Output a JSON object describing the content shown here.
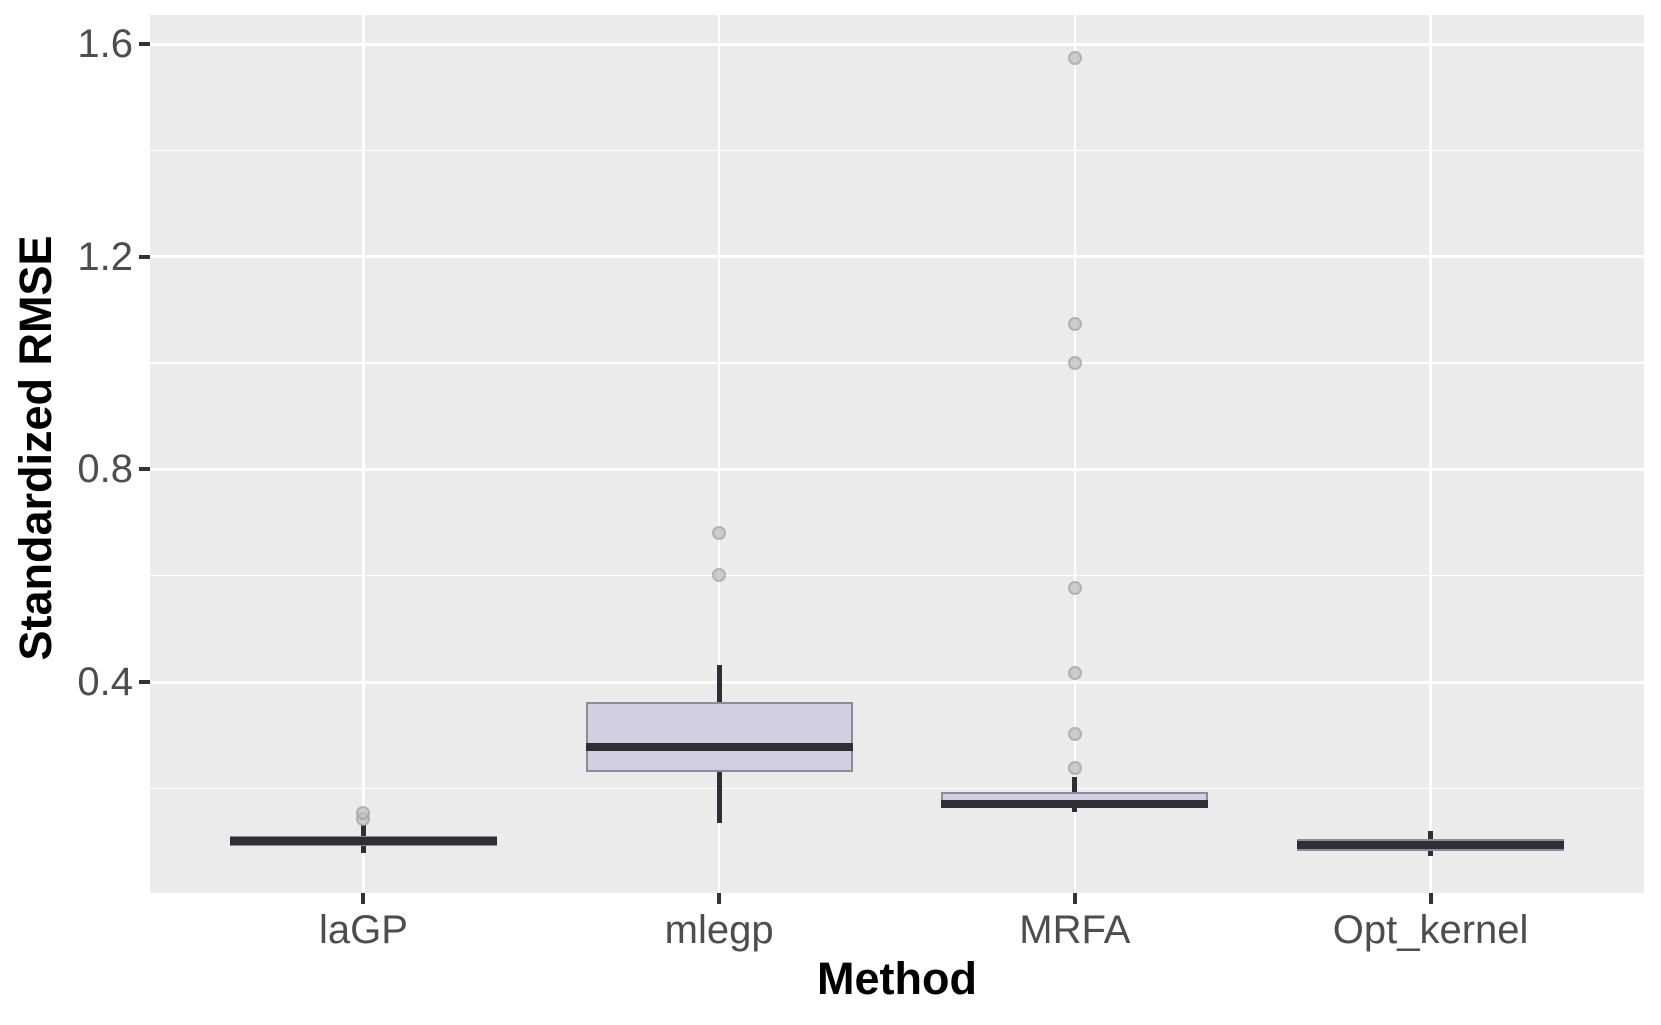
{
  "chart_data": {
    "type": "boxplot",
    "title": "",
    "xlabel": "Method",
    "ylabel": "Standardized RMSE",
    "categories": [
      "laGP",
      "mlegp",
      "MRFA",
      "Opt_kernel"
    ],
    "y_axis": {
      "ticks": [
        0.4,
        0.8,
        1.2,
        1.6
      ],
      "tick_labels": [
        "0.4",
        "0.8",
        "1.2",
        "1.6"
      ],
      "minor_ticks": [
        0.2,
        0.6,
        1.0,
        1.4
      ],
      "range": [
        0.003,
        1.655
      ],
      "grid": true
    },
    "series": [
      {
        "name": "laGP",
        "whisker_low": 0.078,
        "q1": 0.092,
        "median": 0.101,
        "q3": 0.11,
        "whisker_high": 0.131,
        "outliers": [
          0.142,
          0.154
        ]
      },
      {
        "name": "mlegp",
        "whisker_low": 0.135,
        "q1": 0.23,
        "median": 0.278,
        "q3": 0.362,
        "whisker_high": 0.432,
        "outliers": [
          0.601,
          0.68
        ]
      },
      {
        "name": "MRFA",
        "whisker_low": 0.156,
        "q1": 0.163,
        "median": 0.171,
        "q3": 0.193,
        "whisker_high": 0.221,
        "outliers": [
          0.238,
          0.302,
          0.417,
          0.577,
          1.0,
          1.073,
          1.575
        ]
      },
      {
        "name": "Opt_kernel",
        "whisker_low": 0.073,
        "q1": 0.082,
        "median": 0.094,
        "q3": 0.105,
        "whisker_high": 0.12,
        "outliers": []
      }
    ],
    "box_width_ratio": 0.75,
    "x_expand": 0.6,
    "legend": "none",
    "colors": {
      "figure_background": "#FFFFFF",
      "panel_background": "#EBEBEB",
      "grid": "#FFFFFF",
      "box_fill": "#D3CFE3",
      "box_border": "#8C8C99",
      "median": "#2F2E34",
      "whisker": "#2F2E34",
      "outlier_fill": "#BFBFBF",
      "outlier_border": "#9E9E9E",
      "tick_label": "#4D4D4D",
      "axis_title": "#000000",
      "tick_mark": "#333333"
    }
  }
}
